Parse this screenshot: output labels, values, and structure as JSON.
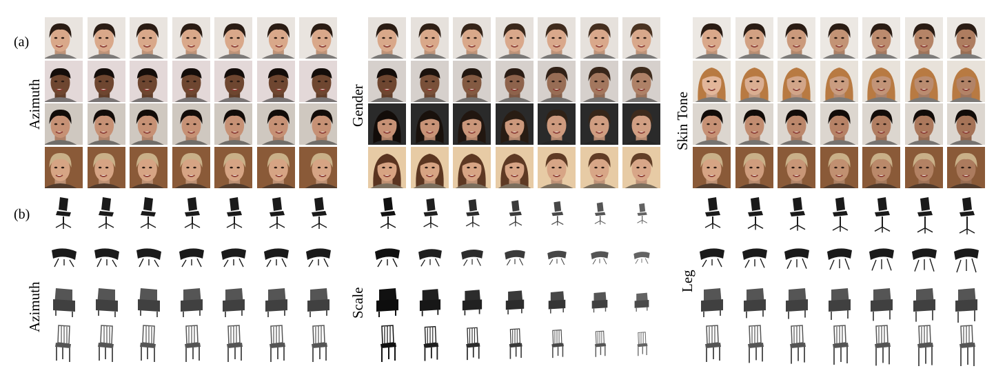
{
  "figure": {
    "part_a_label": "(a)",
    "part_b_label": "(b)",
    "panels_a": [
      {
        "label": "Azimuth",
        "rows": [
          {
            "hair": "#2a1c14",
            "skin": "#d9a88a",
            "bg": "#e9e4df",
            "style": "short"
          },
          {
            "hair": "#140d0a",
            "skin": "#6e4630",
            "bg": "#e3d8d8",
            "style": "bun"
          },
          {
            "hair": "#120c09",
            "skin": "#c69175",
            "bg": "#cfc8c0",
            "style": "short"
          },
          {
            "hair": "#c9b088",
            "skin": "#d6a484",
            "bg": "#8a5a38",
            "style": "short"
          }
        ]
      },
      {
        "label": "Gender",
        "rows": [
          {
            "hair": "#2a1c14",
            "skin": "#d9a88a",
            "bg": "#e6e1dc",
            "style": "short"
          },
          {
            "hair": "#140d0a",
            "skin": "#6e4630",
            "bg": "#d6d0cc",
            "style": "bun"
          },
          {
            "hair": "#120c09",
            "skin": "#c69175",
            "bg": "#2a2a2a",
            "style": "long"
          },
          {
            "hair": "#5a3420",
            "skin": "#d7a382",
            "bg": "#e7cba5",
            "style": "long"
          }
        ]
      },
      {
        "label": "Skin Tone",
        "rows": [
          {
            "hair": "#2a1c14",
            "skin": "#d9a88a",
            "bg": "#ece8e3",
            "style": "short"
          },
          {
            "hair": "#b87a42",
            "skin": "#e2b69a",
            "bg": "#e8e2da",
            "style": "long"
          },
          {
            "hair": "#120c09",
            "skin": "#c69175",
            "bg": "#dcd6cf",
            "style": "short"
          },
          {
            "hair": "#c9b088",
            "skin": "#d6a484",
            "bg": "#8a5a38",
            "style": "short"
          }
        ]
      }
    ],
    "panels_b": [
      {
        "label": "Azimuth",
        "rows": [
          "office",
          "lounge",
          "armchair",
          "spindle"
        ]
      },
      {
        "label": "Scale",
        "rows": [
          "office",
          "lounge",
          "armchair",
          "spindle"
        ]
      },
      {
        "label": "Leg",
        "rows": [
          "office",
          "lounge",
          "armchair",
          "spindle"
        ]
      }
    ]
  }
}
